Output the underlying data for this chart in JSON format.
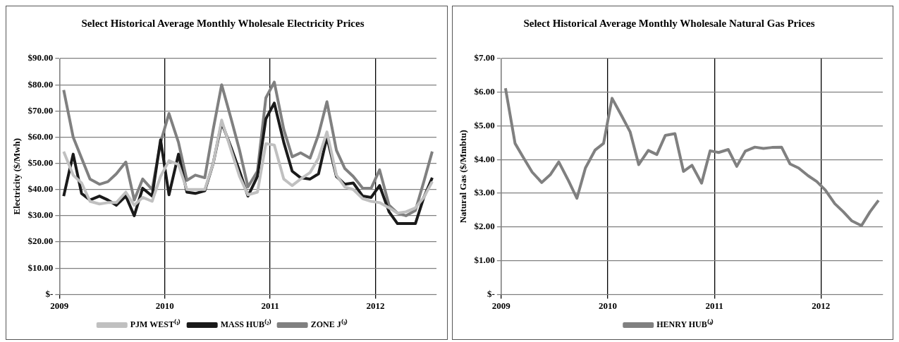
{
  "chart_data": [
    {
      "type": "line",
      "title": "Select Historical Average Monthly Wholesale Electricity Prices",
      "ylabel": "Electricity ($/Mwh)",
      "x": [
        2009.04,
        2009.13,
        2009.21,
        2009.29,
        2009.38,
        2009.46,
        2009.54,
        2009.63,
        2009.71,
        2009.79,
        2009.88,
        2009.96,
        2010.04,
        2010.13,
        2010.21,
        2010.29,
        2010.38,
        2010.46,
        2010.54,
        2010.63,
        2010.71,
        2010.79,
        2010.88,
        2010.96,
        2011.04,
        2011.13,
        2011.21,
        2011.29,
        2011.38,
        2011.46,
        2011.54,
        2011.63,
        2011.71,
        2011.79,
        2011.88,
        2011.96,
        2012.04,
        2012.13,
        2012.21,
        2012.29,
        2012.38,
        2012.46,
        2012.54
      ],
      "series": [
        {
          "name": "PJM WEST⁽¹⁾",
          "color": "#c0c0c0",
          "values": [
            54.5,
            45.5,
            42.5,
            35.5,
            34.5,
            35,
            35,
            39,
            34,
            37,
            35.5,
            45,
            51,
            49.5,
            40,
            40,
            40,
            50,
            66.5,
            55,
            45,
            38,
            39,
            57.5,
            57,
            44,
            41.5,
            44,
            46.5,
            52,
            62,
            45.5,
            41,
            40,
            36.5,
            35.5,
            35,
            33,
            31,
            31.5,
            33,
            37,
            43
          ]
        },
        {
          "name": "MASS HUB⁽²⁾",
          "color": "#1a1a1a",
          "values": [
            37.5,
            53.5,
            38.5,
            36,
            37.5,
            36,
            34,
            37.5,
            30,
            40.5,
            37.5,
            59,
            38,
            53.5,
            39,
            38.5,
            39.5,
            50,
            65.5,
            56,
            47,
            37.5,
            45,
            67,
            73,
            58,
            47,
            44.5,
            44,
            46,
            60,
            45,
            42,
            42.5,
            37.5,
            37,
            41.5,
            31.5,
            27,
            27,
            27,
            37,
            44.5
          ]
        },
        {
          "name": "ZONE J⁽³⁾",
          "color": "#808080",
          "values": [
            78,
            60,
            52,
            44,
            42,
            43,
            46,
            50.5,
            36,
            44,
            40,
            58,
            69,
            58,
            43.5,
            45.5,
            44.5,
            63,
            80,
            67,
            55,
            41,
            47,
            75,
            81,
            63,
            52.5,
            54,
            52,
            61,
            73.5,
            55,
            48,
            45,
            40.5,
            40.5,
            47.5,
            34,
            31,
            30,
            32,
            43,
            54.5
          ]
        }
      ],
      "xlim": [
        2009,
        2012.58
      ],
      "xticks": [
        2009,
        2010,
        2011,
        2012
      ],
      "ylim": [
        0,
        90
      ],
      "yticks": [
        {
          "value": 0,
          "label": "$-"
        },
        {
          "value": 10,
          "label": "$10.00"
        },
        {
          "value": 20,
          "label": "$20.00"
        },
        {
          "value": 30,
          "label": "$30.00"
        },
        {
          "value": 40,
          "label": "$40.00"
        },
        {
          "value": 50,
          "label": "$50.00"
        },
        {
          "value": 60,
          "label": "$60.00"
        },
        {
          "value": 70,
          "label": "$70.00"
        },
        {
          "value": 80,
          "label": "$80.00"
        },
        {
          "value": 90,
          "label": "$90.00"
        }
      ],
      "grid": true,
      "legend": "bottom",
      "marker": "none"
    },
    {
      "type": "line",
      "title": "Select Historical Average Monthly Wholesale Natural Gas Prices",
      "ylabel": "Natural Gas ($/Mmbtu)",
      "x": [
        2009.04,
        2009.13,
        2009.21,
        2009.29,
        2009.38,
        2009.46,
        2009.54,
        2009.63,
        2009.71,
        2009.79,
        2009.88,
        2009.96,
        2010.04,
        2010.13,
        2010.21,
        2010.29,
        2010.38,
        2010.46,
        2010.54,
        2010.63,
        2010.71,
        2010.79,
        2010.88,
        2010.96,
        2011.04,
        2011.13,
        2011.21,
        2011.29,
        2011.38,
        2011.46,
        2011.54,
        2011.63,
        2011.71,
        2011.79,
        2011.88,
        2011.96,
        2012.04,
        2012.13,
        2012.21,
        2012.29,
        2012.38,
        2012.46,
        2012.54
      ],
      "series": [
        {
          "name": "HENRY HUB⁽⁴⁾",
          "color": "#808080",
          "values": [
            6.12,
            4.48,
            4.05,
            3.63,
            3.32,
            3.55,
            3.93,
            3.38,
            2.85,
            3.75,
            4.28,
            4.48,
            5.82,
            5.3,
            4.82,
            3.85,
            4.27,
            4.15,
            4.72,
            4.77,
            3.65,
            3.83,
            3.3,
            4.26,
            4.21,
            4.3,
            3.8,
            4.25,
            4.37,
            4.33,
            4.36,
            4.37,
            3.87,
            3.75,
            3.52,
            3.35,
            3.1,
            2.69,
            2.45,
            2.18,
            2.04,
            2.45,
            2.79
          ]
        }
      ],
      "xlim": [
        2009,
        2012.58
      ],
      "xticks": [
        2009,
        2010,
        2011,
        2012
      ],
      "ylim": [
        0,
        7
      ],
      "yticks": [
        {
          "value": 0,
          "label": "$-"
        },
        {
          "value": 1,
          "label": "$1.00"
        },
        {
          "value": 2,
          "label": "$2.00"
        },
        {
          "value": 3,
          "label": "$3.00"
        },
        {
          "value": 4,
          "label": "$4.00"
        },
        {
          "value": 5,
          "label": "$5.00"
        },
        {
          "value": 6,
          "label": "$6.00"
        },
        {
          "value": 7,
          "label": "$7.00"
        }
      ],
      "grid": true,
      "legend": "bottom",
      "marker": "none"
    }
  ]
}
